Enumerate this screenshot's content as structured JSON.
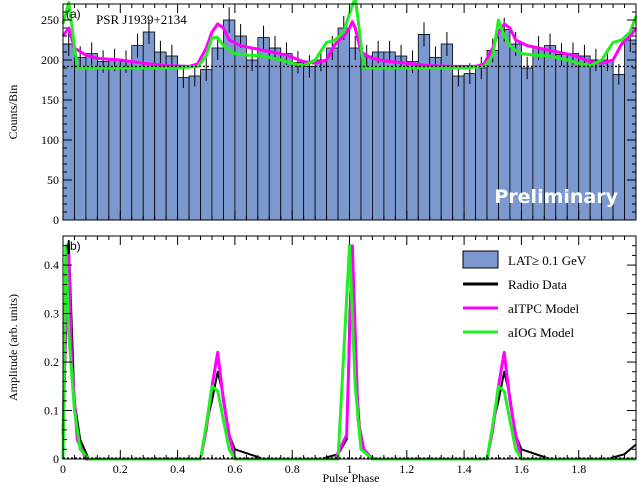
{
  "chart_data": [
    {
      "type": "bar",
      "panel_label": "(a)",
      "title": "PSR J1939+2134",
      "ylabel": "Counts/Bin",
      "xlim": [
        0,
        2
      ],
      "ylim": [
        0,
        270
      ],
      "yticks": [
        0,
        50,
        100,
        150,
        200,
        250
      ],
      "watermark": "Preliminary",
      "background_level": 192,
      "histogram": {
        "name": "LAT≥0.1 GeV",
        "bin_width": 0.04,
        "counts": [
          220,
          203,
          208,
          198,
          200,
          198,
          218,
          235,
          210,
          205,
          178,
          180,
          188,
          215,
          250,
          230,
          200,
          228,
          215,
          208,
          197,
          192,
          200,
          215,
          240,
          215,
          205,
          210,
          210,
          205,
          198,
          232,
          203,
          220,
          180,
          183,
          190,
          212,
          238,
          220,
          190,
          215,
          218,
          207,
          208,
          205,
          200,
          200,
          182,
          225
        ],
        "errors": [
          15,
          14,
          14,
          14,
          14,
          14,
          15,
          15,
          14,
          14,
          13,
          13,
          14,
          15,
          16,
          15,
          14,
          15,
          15,
          14,
          14,
          14,
          14,
          15,
          15,
          15,
          14,
          14,
          14,
          14,
          14,
          15,
          14,
          15,
          13,
          13,
          14,
          15,
          15,
          15,
          14,
          15,
          15,
          14,
          14,
          14,
          14,
          14,
          13,
          15
        ]
      },
      "models": [
        {
          "name": "aITPC Model",
          "color": "#ff00ff",
          "x": [
            0,
            0.02,
            0.04,
            0.08,
            0.12,
            0.2,
            0.28,
            0.36,
            0.44,
            0.47,
            0.5,
            0.52,
            0.54,
            0.56,
            0.58,
            0.62,
            0.7,
            0.78,
            0.84,
            0.88,
            0.92,
            0.95,
            0.98,
            1.0,
            1.01,
            1.02,
            1.04,
            1.08,
            1.12,
            1.2,
            1.28,
            1.36,
            1.44,
            1.47,
            1.5,
            1.52,
            1.54,
            1.56,
            1.58,
            1.62,
            1.7,
            1.78,
            1.84,
            1.88,
            1.92,
            1.95,
            1.98,
            2.0
          ],
          "y": [
            230,
            240,
            215,
            206,
            202,
            200,
            196,
            193,
            192,
            195,
            215,
            235,
            245,
            240,
            225,
            218,
            212,
            206,
            198,
            196,
            200,
            220,
            230,
            240,
            248,
            240,
            210,
            202,
            199,
            196,
            193,
            192,
            192,
            195,
            215,
            235,
            245,
            240,
            225,
            218,
            212,
            206,
            198,
            196,
            200,
            220,
            230,
            240
          ]
        },
        {
          "name": "aIOG Model",
          "color": "#22ee22",
          "x": [
            0,
            0.02,
            0.03,
            0.05,
            0.1,
            0.2,
            0.3,
            0.4,
            0.47,
            0.5,
            0.52,
            0.54,
            0.56,
            0.58,
            0.6,
            0.65,
            0.7,
            0.76,
            0.8,
            0.84,
            0.88,
            0.92,
            0.95,
            0.98,
            1.0,
            1.02,
            1.03,
            1.05,
            1.1,
            1.2,
            1.3,
            1.4,
            1.47,
            1.5,
            1.52,
            1.54,
            1.56,
            1.58,
            1.6,
            1.65,
            1.7,
            1.76,
            1.8,
            1.84,
            1.88,
            1.92,
            1.95,
            1.98,
            2.0
          ],
          "y": [
            245,
            272,
            245,
            190,
            190,
            190,
            190,
            190,
            192,
            205,
            228,
            228,
            218,
            212,
            208,
            206,
            205,
            200,
            196,
            193,
            200,
            222,
            225,
            235,
            258,
            278,
            250,
            190,
            190,
            190,
            190,
            190,
            192,
            205,
            250,
            230,
            218,
            212,
            208,
            206,
            205,
            200,
            196,
            193,
            200,
            222,
            225,
            235,
            255
          ]
        }
      ]
    },
    {
      "type": "line",
      "panel_label": "(b)",
      "ylabel": "Amplitude (arb. units)",
      "xlabel": "Pulse Phase",
      "xlim": [
        0,
        2
      ],
      "ylim": [
        0,
        0.46
      ],
      "xticks": [
        0,
        0.2,
        0.4,
        0.6,
        0.8,
        1,
        1.2,
        1.4,
        1.6,
        1.8
      ],
      "xtick_labels": [
        "0",
        "0.2",
        "0.4",
        "0.6",
        "0.8",
        "1",
        "1.2",
        "1.4",
        "1.6",
        "1.8"
      ],
      "yticks": [
        0,
        0.1,
        0.2,
        0.3,
        0.4
      ],
      "legend_position": "top-right",
      "legend": [
        {
          "label": "LAT≥ 0.1 GeV",
          "kind": "box",
          "color": "#7b99cf"
        },
        {
          "label": "Radio Data",
          "kind": "line",
          "color": "#000000"
        },
        {
          "label": "aITPC Model",
          "kind": "line",
          "color": "#ff00ff"
        },
        {
          "label": "aIOG Model",
          "kind": "line",
          "color": "#22ee22"
        }
      ],
      "series": [
        {
          "name": "Radio Data",
          "color": "#000000",
          "x": [
            0,
            0.01,
            0.02,
            0.04,
            0.06,
            0.09,
            0.2,
            0.4,
            0.48,
            0.5,
            0.52,
            0.54,
            0.56,
            0.58,
            0.6,
            0.7,
            0.8,
            0.9,
            0.96,
            0.99,
            1.0,
            1.01,
            1.02,
            1.04,
            1.06,
            1.09,
            1.2,
            1.4,
            1.48,
            1.5,
            1.52,
            1.54,
            1.56,
            1.58,
            1.6,
            1.7,
            1.8,
            1.9,
            1.96,
            1.99,
            2.0
          ],
          "y": [
            0.03,
            0.25,
            0.45,
            0.12,
            0.04,
            0,
            0,
            0,
            0,
            0.07,
            0.12,
            0.18,
            0.13,
            0.05,
            0.02,
            0,
            0,
            0,
            0.01,
            0.04,
            0.3,
            0.44,
            0.2,
            0.03,
            0.01,
            0,
            0,
            0,
            0,
            0.07,
            0.12,
            0.18,
            0.13,
            0.05,
            0.02,
            0,
            0,
            0,
            0.01,
            0.025,
            0.03
          ]
        },
        {
          "name": "aITPC Model",
          "color": "#ff00ff",
          "x": [
            0,
            0.01,
            0.02,
            0.03,
            0.05,
            0.08,
            0.2,
            0.4,
            0.48,
            0.5,
            0.52,
            0.54,
            0.56,
            0.58,
            0.6,
            0.7,
            0.8,
            0.95,
            0.99,
            1.01,
            1.03,
            1.05,
            1.08,
            1.2,
            1.4,
            1.48,
            1.5,
            1.52,
            1.54,
            1.56,
            1.58,
            1.6,
            1.7,
            1.8,
            2.0
          ],
          "y": [
            0.05,
            0.3,
            0.42,
            0.2,
            0.04,
            0,
            0,
            0,
            0,
            0.06,
            0.15,
            0.22,
            0.12,
            0.05,
            0,
            0,
            0,
            0,
            0.05,
            0.44,
            0.08,
            0.02,
            0,
            0,
            0,
            0,
            0.06,
            0.15,
            0.22,
            0.12,
            0.05,
            0,
            0,
            0,
            0
          ]
        },
        {
          "name": "aIOG Model",
          "color": "#22ee22",
          "x": [
            0,
            0.01,
            0.02,
            0.04,
            0.06,
            0.09,
            0.2,
            0.4,
            0.48,
            0.5,
            0.52,
            0.54,
            0.56,
            0.58,
            0.6,
            0.7,
            0.8,
            0.9,
            0.96,
            1.0,
            1.02,
            1.04,
            1.08,
            1.2,
            1.4,
            1.48,
            1.5,
            1.52,
            1.54,
            1.56,
            1.58,
            1.6,
            1.7,
            1.8,
            2.0
          ],
          "y": [
            0,
            0.44,
            0.26,
            0.1,
            0.02,
            0,
            0,
            0,
            0,
            0.07,
            0.15,
            0.14,
            0.08,
            0.02,
            0,
            0,
            0,
            0,
            0,
            0.44,
            0.15,
            0.02,
            0,
            0,
            0,
            0,
            0.07,
            0.15,
            0.14,
            0.08,
            0.02,
            0,
            0,
            0,
            0
          ]
        }
      ]
    }
  ]
}
